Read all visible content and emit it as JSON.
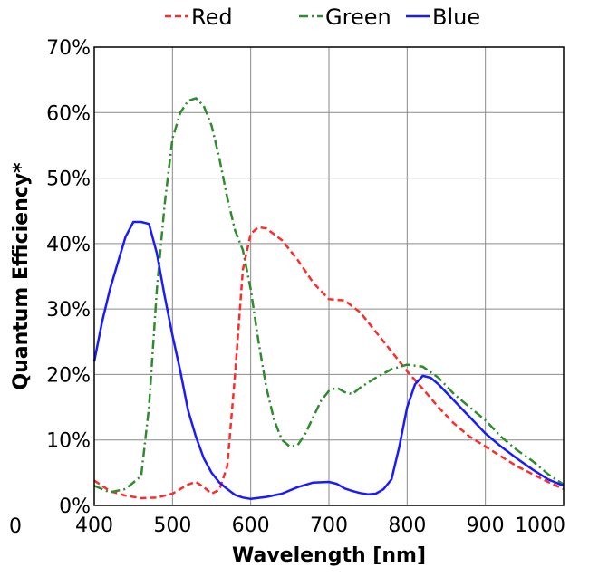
{
  "chart_data": {
    "type": "line",
    "title": "",
    "xlabel": "Wavelength [nm]",
    "ylabel": "Quantum Efficiency*",
    "xlim": [
      400,
      1000
    ],
    "ylim": [
      0,
      70
    ],
    "xticks": [
      400,
      500,
      600,
      700,
      800,
      900,
      1000
    ],
    "xtick_labels": [
      "400",
      "500",
      "600",
      "700",
      "800",
      "900",
      "1000"
    ],
    "yticks": [
      0,
      10,
      20,
      30,
      40,
      50,
      60,
      70
    ],
    "ytick_labels": [
      "0%",
      "10%",
      "20%",
      "30%",
      "40%",
      "50%",
      "60%",
      "70%"
    ],
    "corner_label": "0",
    "grid": true,
    "legend_position": "top",
    "series": [
      {
        "name": "Red",
        "color": "#ff2a2a",
        "dash": "dashed",
        "x": [
          400,
          420,
          440,
          460,
          480,
          500,
          520,
          530,
          540,
          550,
          560,
          570,
          580,
          590,
          600,
          610,
          620,
          640,
          660,
          680,
          700,
          720,
          740,
          760,
          780,
          800,
          820,
          840,
          860,
          880,
          900,
          920,
          940,
          960,
          980,
          1000
        ],
        "y": [
          3.8,
          2.2,
          1.5,
          1.1,
          1.2,
          1.8,
          3.2,
          3.6,
          2.8,
          1.8,
          2.4,
          6,
          20,
          36,
          41.5,
          42.5,
          42.3,
          40.5,
          37.5,
          34,
          31.5,
          31.3,
          29.5,
          26.5,
          23.5,
          20.5,
          17.8,
          15,
          12.5,
          10.5,
          9,
          7.5,
          6,
          4.8,
          3.6,
          2.5
        ]
      },
      {
        "name": "Green",
        "color": "#2e8b2e",
        "dash": "dashdot",
        "x": [
          400,
          420,
          440,
          460,
          470,
          480,
          490,
          500,
          510,
          520,
          530,
          540,
          550,
          560,
          570,
          580,
          590,
          600,
          610,
          620,
          630,
          640,
          650,
          660,
          670,
          680,
          690,
          700,
          710,
          720,
          730,
          740,
          760,
          780,
          800,
          820,
          840,
          860,
          880,
          900,
          920,
          940,
          960,
          980,
          1000
        ],
        "y": [
          3,
          2,
          2.5,
          4.5,
          15,
          33,
          46,
          56,
          60,
          61.8,
          62.2,
          61,
          58,
          53,
          47,
          42,
          39,
          33,
          25,
          18,
          13,
          10,
          9,
          9.2,
          11,
          13.5,
          16,
          17.5,
          18,
          17.3,
          17,
          18,
          19.5,
          20.8,
          21.5,
          21.2,
          19.5,
          17,
          15,
          13,
          10.5,
          8.5,
          6.8,
          4.8,
          3.2
        ]
      },
      {
        "name": "Blue",
        "color": "#1a1aff",
        "dash": "solid",
        "x": [
          400,
          410,
          420,
          430,
          440,
          450,
          460,
          470,
          480,
          490,
          500,
          510,
          520,
          530,
          540,
          550,
          560,
          570,
          580,
          590,
          600,
          620,
          640,
          660,
          680,
          700,
          710,
          720,
          730,
          740,
          750,
          760,
          770,
          780,
          790,
          800,
          810,
          820,
          830,
          840,
          860,
          880,
          900,
          920,
          940,
          960,
          980,
          1000
        ],
        "y": [
          22,
          28,
          33,
          37,
          41,
          43.3,
          43.3,
          43,
          38.5,
          32,
          26,
          20.5,
          14.5,
          10.5,
          7.2,
          5,
          3.5,
          2.5,
          1.6,
          1.2,
          1,
          1.3,
          1.8,
          2.8,
          3.5,
          3.6,
          3.3,
          2.6,
          2.2,
          1.9,
          1.7,
          1.8,
          2.5,
          4,
          9,
          15,
          18.5,
          19.8,
          19.5,
          18.5,
          16,
          13.5,
          11,
          9,
          7.2,
          5.5,
          4,
          3
        ]
      }
    ]
  }
}
